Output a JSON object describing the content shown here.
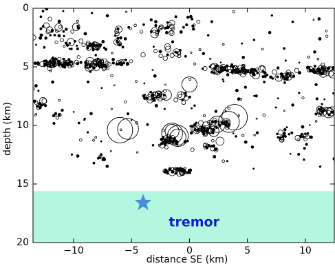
{
  "chart_data": {
    "type": "scatter",
    "xlabel": "distance SE (km)",
    "ylabel": "depth (km)",
    "xlim": [
      -13.5,
      12.5
    ],
    "ylim": [
      20,
      0
    ],
    "x_ticks": [
      -10,
      -5,
      0,
      5,
      10
    ],
    "y_ticks": [
      0,
      5,
      10,
      15,
      20
    ],
    "x_tick_labels": [
      "−10",
      "−5",
      "0",
      "5",
      "10"
    ],
    "y_tick_labels": [
      "0",
      "5",
      "10",
      "15",
      "20"
    ],
    "grid": false,
    "colors": {
      "tremor_zone": "#b3f7e0",
      "tremor_text": "#1020c8",
      "star": "#4a90d9",
      "points": "#000000",
      "axes": "#000000"
    },
    "tremor_zone": {
      "depth_top": 15.6,
      "depth_bottom": 20,
      "label": "tremor",
      "label_x": 0.4,
      "label_y": 18.3
    },
    "tremor_star": {
      "x": -4.0,
      "y": 16.6
    },
    "large_circles": [
      {
        "x": -6.0,
        "y": 10.4,
        "r": 1.1
      },
      {
        "x": -5.3,
        "y": 10.3,
        "r": 0.9
      },
      {
        "x": -1.5,
        "y": 10.7,
        "r": 0.9
      },
      {
        "x": -1.0,
        "y": 10.9,
        "r": 0.9
      },
      {
        "x": -1.0,
        "y": 11.0,
        "r": 0.7
      },
      {
        "x": 3.9,
        "y": 9.3,
        "r": 1.1
      },
      {
        "x": 3.4,
        "y": 9.7,
        "r": 0.9
      },
      {
        "x": 2.4,
        "y": 9.9,
        "r": 0.7
      },
      {
        "x": 0.0,
        "y": 6.5,
        "r": 0.65
      },
      {
        "x": -2.0,
        "y": 7.4,
        "r": 0.45
      },
      {
        "x": 2.1,
        "y": 10.5,
        "r": 0.45
      },
      {
        "x": 12.0,
        "y": 8.9,
        "r": 0.45
      },
      {
        "x": 12.3,
        "y": 8.8,
        "r": 0.4
      },
      {
        "x": -1.5,
        "y": 10.5,
        "r": 0.6
      }
    ],
    "clusters": [
      {
        "cx": -11.5,
        "cy": 4.7,
        "sx": 1.3,
        "sy": 0.25,
        "n": 70
      },
      {
        "cx": -8.0,
        "cy": 4.8,
        "sx": 0.9,
        "sy": 0.3,
        "n": 45
      },
      {
        "cx": -6.0,
        "cy": 4.7,
        "sx": 0.8,
        "sy": 0.2,
        "n": 20
      },
      {
        "cx": -8.0,
        "cy": 3.2,
        "sx": 0.55,
        "sy": 0.25,
        "n": 26
      },
      {
        "cx": -6.0,
        "cy": 2.5,
        "sx": 0.4,
        "sy": 0.5,
        "n": 14
      },
      {
        "cx": -12.0,
        "cy": 1.7,
        "sx": 1.2,
        "sy": 0.9,
        "n": 18
      },
      {
        "cx": -10.0,
        "cy": 2.8,
        "sx": 1.0,
        "sy": 1.0,
        "n": 20
      },
      {
        "cx": -2.5,
        "cy": 1.7,
        "sx": 1.3,
        "sy": 0.7,
        "n": 22
      },
      {
        "cx": -2.0,
        "cy": 4.0,
        "sx": 1.4,
        "sy": 0.5,
        "n": 16
      },
      {
        "cx": 3.0,
        "cy": 5.2,
        "sx": 1.6,
        "sy": 0.25,
        "n": 55
      },
      {
        "cx": 5.5,
        "cy": 5.5,
        "sx": 1.1,
        "sy": 0.25,
        "n": 28
      },
      {
        "cx": 8.0,
        "cy": 5.8,
        "sx": 0.9,
        "sy": 0.25,
        "n": 22
      },
      {
        "cx": 11.0,
        "cy": 5.3,
        "sx": 1.2,
        "sy": 0.3,
        "n": 40
      },
      {
        "cx": -2.8,
        "cy": 7.4,
        "sx": 0.9,
        "sy": 0.35,
        "n": 24
      },
      {
        "cx": -0.5,
        "cy": 7.6,
        "sx": 0.6,
        "sy": 0.3,
        "n": 10
      },
      {
        "cx": 1.0,
        "cy": 10.4,
        "sx": 0.9,
        "sy": 0.3,
        "n": 38
      },
      {
        "cx": 2.8,
        "cy": 10.0,
        "sx": 0.6,
        "sy": 0.3,
        "n": 22
      },
      {
        "cx": -1.8,
        "cy": 11.3,
        "sx": 1.0,
        "sy": 0.35,
        "n": 30
      },
      {
        "cx": -1.0,
        "cy": 13.9,
        "sx": 0.8,
        "sy": 0.18,
        "n": 32
      },
      {
        "cx": 1.5,
        "cy": 11.8,
        "sx": 0.8,
        "sy": 0.3,
        "n": 14
      },
      {
        "cx": 8.0,
        "cy": 11.0,
        "sx": 0.4,
        "sy": 0.4,
        "n": 14
      },
      {
        "cx": 9.7,
        "cy": 11.0,
        "sx": 0.4,
        "sy": 0.6,
        "n": 12
      },
      {
        "cx": 11.6,
        "cy": 8.8,
        "sx": 0.6,
        "sy": 0.3,
        "n": 16
      },
      {
        "cx": -13.0,
        "cy": 8.2,
        "sx": 0.4,
        "sy": 0.3,
        "n": 10
      },
      {
        "cx": -7.5,
        "cy": 12.8,
        "sx": 0.3,
        "sy": 0.2,
        "n": 8
      },
      {
        "cx": -11.5,
        "cy": 9.2,
        "sx": 0.3,
        "sy": 0.2,
        "n": 6
      },
      {
        "cx": 0.3,
        "cy": 1.3,
        "sx": 0.4,
        "sy": 0.4,
        "n": 8
      }
    ],
    "scattered_points": 180
  }
}
